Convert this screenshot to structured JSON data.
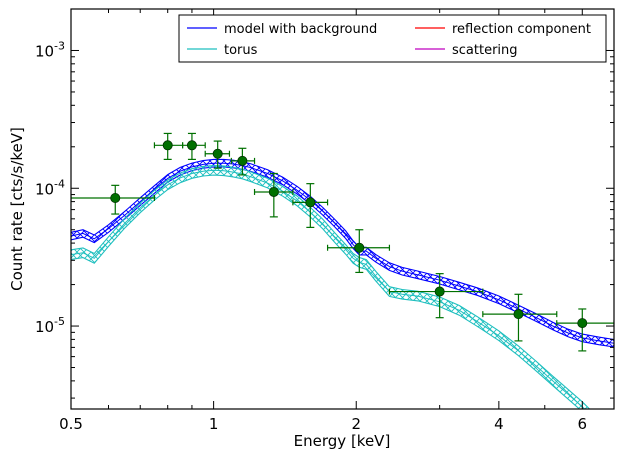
{
  "chart_data": {
    "type": "line",
    "xlabel": "Energy [keV]",
    "ylabel": "Count rate [cts/s/keV]",
    "x_scale": "log",
    "y_scale": "log",
    "xlim": [
      0.5,
      7.0
    ],
    "ylim": [
      2.5e-06,
      0.002
    ],
    "x_ticks": [
      {
        "value": 0.5,
        "label": "0.5"
      },
      {
        "value": 1,
        "label": "1"
      },
      {
        "value": 2,
        "label": "2"
      },
      {
        "value": 4,
        "label": "4"
      },
      {
        "value": 6,
        "label": "6"
      }
    ],
    "y_ticks": [
      {
        "value": 1e-05,
        "base": "10",
        "exp": "-5"
      },
      {
        "value": 0.0001,
        "base": "10",
        "exp": "-4"
      },
      {
        "value": 0.001,
        "base": "10",
        "exp": "-3"
      }
    ],
    "grid": false,
    "legend_position": "top-right",
    "legend": [
      {
        "label": "model with background",
        "color": "#0000ff"
      },
      {
        "label": "torus",
        "color": "#1fbfbf"
      },
      {
        "label": "reflection component",
        "color": "#ff0000"
      },
      {
        "label": "scattering",
        "color": "#bf00bf"
      }
    ],
    "series": [
      {
        "name": "model with background",
        "color": "#0000ff",
        "x": [
          0.5,
          0.53,
          0.56,
          0.6,
          0.65,
          0.7,
          0.75,
          0.8,
          0.85,
          0.9,
          0.95,
          1.0,
          1.05,
          1.1,
          1.15,
          1.2,
          1.3,
          1.4,
          1.5,
          1.6,
          1.7,
          1.8,
          1.9,
          1.97,
          2.03,
          2.1,
          2.2,
          2.35,
          2.5,
          2.7,
          3.0,
          3.3,
          3.6,
          4.0,
          4.4,
          4.8,
          5.2,
          5.6,
          6.0,
          6.5,
          7.0
        ],
        "y": [
          4.5e-05,
          4.7e-05,
          4.3e-05,
          5.1e-05,
          6.4e-05,
          8e-05,
          9.8e-05,
          0.000118,
          0.000133,
          0.000143,
          0.000149,
          0.000152,
          0.000152,
          0.00015,
          0.000146,
          0.000141,
          0.000128,
          0.000113,
          9.7e-05,
          8.2e-05,
          6.8e-05,
          5.6e-05,
          4.6e-05,
          3.9e-05,
          3.5e-05,
          3.5e-05,
          3.1e-05,
          2.7e-05,
          2.5e-05,
          2.35e-05,
          2.15e-05,
          1.95e-05,
          1.78e-05,
          1.55e-05,
          1.33e-05,
          1.15e-05,
          1e-05,
          8.9e-06,
          8.2e-06,
          7.8e-06,
          7.5e-06
        ],
        "band_width": 0.055
      },
      {
        "name": "torus",
        "color": "#1fbfbf",
        "x": [
          0.5,
          0.53,
          0.56,
          0.6,
          0.65,
          0.7,
          0.75,
          0.8,
          0.85,
          0.9,
          0.95,
          1.0,
          1.05,
          1.1,
          1.15,
          1.2,
          1.3,
          1.4,
          1.5,
          1.6,
          1.7,
          1.8,
          1.9,
          1.97,
          2.03,
          2.1,
          2.2,
          2.35,
          2.5,
          2.7,
          3.0,
          3.3,
          3.6,
          4.0,
          4.4,
          4.8,
          5.2,
          5.6,
          6.0,
          6.3
        ],
        "y": [
          3.3e-05,
          3.4e-05,
          3.1e-05,
          4.1e-05,
          5.6e-05,
          7.2e-05,
          8.9e-05,
          0.000106,
          0.000119,
          0.000128,
          0.000133,
          0.000135,
          0.000134,
          0.000131,
          0.000127,
          0.000121,
          0.000109,
          9.5e-05,
          8.1e-05,
          6.7e-05,
          5.5e-05,
          4.4e-05,
          3.6e-05,
          3.1e-05,
          2.9e-05,
          2.8e-05,
          2.3e-05,
          1.78e-05,
          1.7e-05,
          1.65e-05,
          1.5e-05,
          1.3e-05,
          1.08e-05,
          8.5e-06,
          6.6e-06,
          5.1e-06,
          4e-06,
          3.2e-06,
          2.6e-06,
          2.2e-06
        ],
        "band_width": 0.07
      }
    ],
    "data_points": {
      "color": "#007000",
      "points": [
        {
          "x": 0.62,
          "y": 8.5e-05,
          "xlo": 0.5,
          "xhi": 0.75,
          "ylo": 6.5e-05,
          "yhi": 0.000105
        },
        {
          "x": 0.8,
          "y": 0.000205,
          "xlo": 0.75,
          "xhi": 0.86,
          "ylo": 0.000162,
          "yhi": 0.00025
        },
        {
          "x": 0.9,
          "y": 0.000205,
          "xlo": 0.86,
          "xhi": 0.96,
          "ylo": 0.000162,
          "yhi": 0.00025
        },
        {
          "x": 1.02,
          "y": 0.000178,
          "xlo": 0.96,
          "xhi": 1.08,
          "ylo": 0.00014,
          "yhi": 0.00022
        },
        {
          "x": 1.15,
          "y": 0.000158,
          "xlo": 1.09,
          "xhi": 1.22,
          "ylo": 0.000125,
          "yhi": 0.000195
        },
        {
          "x": 1.34,
          "y": 9.4e-05,
          "xlo": 1.22,
          "xhi": 1.47,
          "ylo": 6.2e-05,
          "yhi": 0.000128
        },
        {
          "x": 1.6,
          "y": 7.9e-05,
          "xlo": 1.47,
          "xhi": 1.74,
          "ylo": 5.2e-05,
          "yhi": 0.000108
        },
        {
          "x": 2.03,
          "y": 3.7e-05,
          "xlo": 1.74,
          "xhi": 2.35,
          "ylo": 2.45e-05,
          "yhi": 5e-05
        },
        {
          "x": 3.0,
          "y": 1.78e-05,
          "xlo": 2.35,
          "xhi": 3.7,
          "ylo": 1.15e-05,
          "yhi": 2.4e-05
        },
        {
          "x": 4.4,
          "y": 1.22e-05,
          "xlo": 3.7,
          "xhi": 5.3,
          "ylo": 7.8e-06,
          "yhi": 1.7e-05
        },
        {
          "x": 6.0,
          "y": 1.05e-05,
          "xlo": 5.3,
          "xhi": 7.0,
          "ylo": 6.6e-06,
          "yhi": 1.33e-05
        }
      ]
    }
  }
}
